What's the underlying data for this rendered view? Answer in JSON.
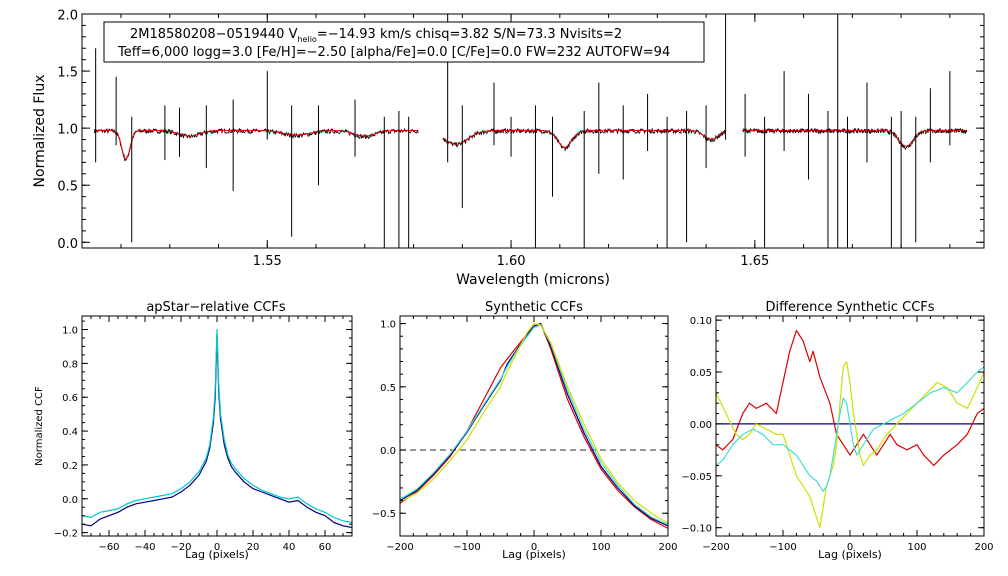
{
  "chart_data": [
    {
      "type": "line",
      "id": "spectrum",
      "info_line1_prefix": "2M18580208−0519440  V",
      "info_line1_sub": "helio",
      "info_line1_suffix": "=−14.93 km/s  chisq=3.82  S/N=73.3  Nvisits=2",
      "info_line2": "Teff=6,000 logg=3.0 [Fe/H]=−2.50 [alpha/Fe]=0.0 [C/Fe]=0.0 FW=232 AUTOFW=94",
      "xlabel": "Wavelength (microns)",
      "ylabel": "Normalized Flux",
      "xlim": [
        1.512,
        1.697
      ],
      "ylim": [
        -0.05,
        2.0
      ],
      "xticks": [
        1.55,
        1.6,
        1.65
      ],
      "xtick_labels": [
        "1.55",
        "1.60",
        "1.65"
      ],
      "yticks": [
        0.0,
        0.5,
        1.0,
        1.5,
        2.0
      ],
      "ytick_labels": [
        "0.0",
        "0.5",
        "1.0",
        "1.5",
        "2.0"
      ],
      "chips": [
        [
          1.5145,
          1.581
        ],
        [
          1.586,
          1.644
        ],
        [
          1.6475,
          1.6935
        ]
      ],
      "observed_color": "#000000",
      "model_color": "#dd0000",
      "series": [
        {
          "name": "observed",
          "continuum": 0.975,
          "scatter": 0.02
        },
        {
          "name": "model",
          "continuum": 0.98
        }
      ],
      "absorption": [
        {
          "x": 1.521,
          "depth": 0.25,
          "w": 0.0012
        },
        {
          "x": 1.534,
          "depth": 0.05,
          "w": 0.003
        },
        {
          "x": 1.556,
          "depth": 0.04,
          "w": 0.004
        },
        {
          "x": 1.57,
          "depth": 0.05,
          "w": 0.003
        },
        {
          "x": 1.5887,
          "depth": 0.12,
          "w": 0.0035
        },
        {
          "x": 1.611,
          "depth": 0.15,
          "w": 0.002
        },
        {
          "x": 1.641,
          "depth": 0.08,
          "w": 0.002
        },
        {
          "x": 1.681,
          "depth": 0.14,
          "w": 0.002
        }
      ],
      "spikes": [
        {
          "x": 1.5148,
          "lo": 0.7,
          "hi": 1.7
        },
        {
          "x": 1.519,
          "lo": 0.85,
          "hi": 1.45
        },
        {
          "x": 1.5222,
          "lo": 0.0,
          "hi": 1.1
        },
        {
          "x": 1.529,
          "lo": 0.72,
          "hi": 1.2
        },
        {
          "x": 1.532,
          "lo": 0.75,
          "hi": 1.18
        },
        {
          "x": 1.5375,
          "lo": 0.65,
          "hi": 1.2
        },
        {
          "x": 1.543,
          "lo": 0.45,
          "hi": 1.25
        },
        {
          "x": 1.55,
          "lo": 0.9,
          "hi": 1.5
        },
        {
          "x": 1.555,
          "lo": 0.05,
          "hi": 1.2
        },
        {
          "x": 1.5605,
          "lo": 0.5,
          "hi": 1.2
        },
        {
          "x": 1.568,
          "lo": 0.75,
          "hi": 1.25
        },
        {
          "x": 1.574,
          "lo": -0.05,
          "hi": 1.1
        },
        {
          "x": 1.577,
          "lo": -0.05,
          "hi": 1.15
        },
        {
          "x": 1.579,
          "lo": -0.05,
          "hi": 1.1
        },
        {
          "x": 1.587,
          "lo": 0.7,
          "hi": 2.0
        },
        {
          "x": 1.59,
          "lo": 0.3,
          "hi": 1.2
        },
        {
          "x": 1.5965,
          "lo": 0.85,
          "hi": 1.4
        },
        {
          "x": 1.6,
          "lo": 0.75,
          "hi": 1.1
        },
        {
          "x": 1.605,
          "lo": -0.05,
          "hi": 1.2
        },
        {
          "x": 1.6085,
          "lo": 0.4,
          "hi": 1.1
        },
        {
          "x": 1.615,
          "lo": -0.05,
          "hi": 1.15
        },
        {
          "x": 1.618,
          "lo": 0.6,
          "hi": 1.4
        },
        {
          "x": 1.623,
          "lo": 0.55,
          "hi": 1.2
        },
        {
          "x": 1.628,
          "lo": 0.8,
          "hi": 1.3
        },
        {
          "x": 1.632,
          "lo": -0.05,
          "hi": 1.1
        },
        {
          "x": 1.636,
          "lo": 0.0,
          "hi": 1.15
        },
        {
          "x": 1.64,
          "lo": 0.65,
          "hi": 1.2
        },
        {
          "x": 1.644,
          "lo": 0.9,
          "hi": 2.0
        },
        {
          "x": 1.648,
          "lo": 0.75,
          "hi": 1.3
        },
        {
          "x": 1.652,
          "lo": -0.05,
          "hi": 1.1
        },
        {
          "x": 1.656,
          "lo": 0.8,
          "hi": 1.5
        },
        {
          "x": 1.661,
          "lo": 0.55,
          "hi": 1.3
        },
        {
          "x": 1.665,
          "lo": -0.05,
          "hi": 1.15
        },
        {
          "x": 1.667,
          "lo": -0.05,
          "hi": 2.0
        },
        {
          "x": 1.669,
          "lo": -0.05,
          "hi": 1.1
        },
        {
          "x": 1.673,
          "lo": 0.7,
          "hi": 1.4
        },
        {
          "x": 1.678,
          "lo": -0.05,
          "hi": 1.1
        },
        {
          "x": 1.68,
          "lo": -0.05,
          "hi": 1.15
        },
        {
          "x": 1.683,
          "lo": 0.0,
          "hi": 1.1
        },
        {
          "x": 1.686,
          "lo": 0.7,
          "hi": 1.35
        },
        {
          "x": 1.69,
          "lo": 0.85,
          "hi": 1.5
        }
      ]
    },
    {
      "type": "line",
      "id": "apstar",
      "title": "apStar−relative CCFs",
      "xlabel": "Lag (pixels)",
      "ylabel": "Normalized CCF",
      "xlim": [
        -75,
        75
      ],
      "ylim": [
        -0.22,
        1.08
      ],
      "xticks": [
        -60,
        -40,
        -20,
        0,
        20,
        40,
        60
      ],
      "xtick_labels": [
        "−60",
        "−40",
        "−20",
        "0",
        "20",
        "40",
        "60"
      ],
      "yticks": [
        -0.2,
        0.0,
        0.2,
        0.4,
        0.6,
        0.8,
        1.0
      ],
      "ytick_labels": [
        "−0.2",
        "0.0",
        "0.2",
        "0.4",
        "0.6",
        "0.8",
        "1.0"
      ],
      "series": [
        {
          "name": "visit-1",
          "color": "#000080",
          "x": [
            -75,
            -70,
            -65,
            -60,
            -55,
            -50,
            -45,
            -40,
            -35,
            -30,
            -25,
            -20,
            -15,
            -10,
            -8,
            -6,
            -4,
            -2,
            -1,
            0,
            1,
            2,
            4,
            6,
            8,
            10,
            15,
            20,
            25,
            30,
            35,
            40,
            45,
            50,
            55,
            60,
            65,
            70,
            75
          ],
          "y": [
            -0.15,
            -0.16,
            -0.12,
            -0.1,
            -0.08,
            -0.05,
            -0.03,
            -0.02,
            -0.01,
            0.0,
            0.01,
            0.04,
            0.08,
            0.14,
            0.18,
            0.22,
            0.3,
            0.45,
            0.6,
            0.97,
            0.62,
            0.47,
            0.32,
            0.24,
            0.19,
            0.16,
            0.1,
            0.06,
            0.04,
            0.02,
            0.0,
            -0.02,
            -0.01,
            -0.05,
            -0.08,
            -0.1,
            -0.14,
            -0.16,
            -0.17
          ]
        },
        {
          "name": "visit-2",
          "color": "#00c8c8",
          "x": [
            -75,
            -70,
            -65,
            -60,
            -55,
            -50,
            -45,
            -40,
            -35,
            -30,
            -25,
            -20,
            -15,
            -10,
            -8,
            -6,
            -4,
            -2,
            -1,
            0,
            1,
            2,
            4,
            6,
            8,
            10,
            15,
            20,
            25,
            30,
            35,
            40,
            45,
            50,
            55,
            60,
            65,
            70,
            75
          ],
          "y": [
            -0.1,
            -0.11,
            -0.08,
            -0.07,
            -0.06,
            -0.03,
            -0.01,
            0.0,
            0.01,
            0.02,
            0.03,
            0.06,
            0.1,
            0.16,
            0.2,
            0.24,
            0.32,
            0.48,
            0.65,
            1.0,
            0.66,
            0.5,
            0.35,
            0.26,
            0.21,
            0.18,
            0.12,
            0.08,
            0.05,
            0.03,
            0.01,
            0.0,
            0.01,
            -0.03,
            -0.06,
            -0.08,
            -0.11,
            -0.13,
            -0.14
          ]
        }
      ]
    },
    {
      "type": "line",
      "id": "synthetic",
      "title": "Synthetic CCFs",
      "xlabel": "Lag (pixels)",
      "ylabel": "",
      "xlim": [
        -200,
        200
      ],
      "ylim": [
        -0.68,
        1.06
      ],
      "xticks": [
        -200,
        -100,
        0,
        100,
        200
      ],
      "xtick_labels": [
        "−200",
        "−100",
        "0",
        "100",
        "200"
      ],
      "yticks": [
        -0.5,
        0.0,
        0.5,
        1.0
      ],
      "ytick_labels": [
        "−0.5",
        "0.0",
        "0.5",
        "1.0"
      ],
      "reference_line": {
        "y": 0.0,
        "style": "dashed",
        "color": "#555555"
      },
      "series": [
        {
          "name": "combined",
          "color": "#dd0000",
          "x": [
            -200,
            -175,
            -150,
            -125,
            -100,
            -75,
            -50,
            -40,
            -25,
            -10,
            0,
            10,
            25,
            50,
            75,
            100,
            125,
            150,
            175,
            200
          ],
          "y": [
            -0.42,
            -0.33,
            -0.2,
            -0.05,
            0.15,
            0.4,
            0.65,
            0.72,
            0.82,
            0.92,
            0.98,
            1.0,
            0.8,
            0.4,
            0.1,
            -0.15,
            -0.32,
            -0.45,
            -0.55,
            -0.62
          ]
        },
        {
          "name": "visit-1",
          "color": "#000080",
          "x": [
            -200,
            -175,
            -150,
            -125,
            -100,
            -75,
            -50,
            -40,
            -25,
            -10,
            0,
            10,
            25,
            50,
            75,
            100,
            125,
            150,
            175,
            200
          ],
          "y": [
            -0.4,
            -0.32,
            -0.19,
            -0.04,
            0.14,
            0.35,
            0.55,
            0.68,
            0.8,
            0.91,
            0.98,
            1.0,
            0.82,
            0.44,
            0.13,
            -0.13,
            -0.3,
            -0.44,
            -0.54,
            -0.6
          ]
        },
        {
          "name": "visit-2",
          "color": "#40e0d0",
          "x": [
            -200,
            -175,
            -150,
            -125,
            -100,
            -75,
            -50,
            -40,
            -25,
            -10,
            0,
            10,
            25,
            50,
            75,
            100,
            125,
            150,
            175,
            200
          ],
          "y": [
            -0.39,
            -0.31,
            -0.18,
            -0.03,
            0.15,
            0.36,
            0.56,
            0.66,
            0.79,
            0.9,
            0.97,
            0.99,
            0.84,
            0.47,
            0.16,
            -0.1,
            -0.28,
            -0.43,
            -0.53,
            -0.59
          ]
        },
        {
          "name": "visit-3",
          "color": "#d0e000",
          "x": [
            -200,
            -175,
            -150,
            -125,
            -100,
            -75,
            -50,
            -40,
            -25,
            -10,
            0,
            10,
            25,
            50,
            75,
            100,
            125,
            150,
            175,
            200
          ],
          "y": [
            -0.41,
            -0.34,
            -0.23,
            -0.08,
            0.08,
            0.3,
            0.5,
            0.62,
            0.78,
            0.93,
            1.0,
            0.99,
            0.85,
            0.5,
            0.2,
            -0.07,
            -0.26,
            -0.4,
            -0.5,
            -0.58
          ]
        }
      ]
    },
    {
      "type": "line",
      "id": "difference",
      "title": "Difference Synthetic CCFs",
      "xlabel": "Lag (pixels)",
      "ylabel": "",
      "xlim": [
        -200,
        200
      ],
      "ylim": [
        -0.108,
        0.104
      ],
      "xticks": [
        -200,
        -100,
        0,
        100,
        200
      ],
      "xtick_labels": [
        "−200",
        "−100",
        "0",
        "100",
        "200"
      ],
      "yticks": [
        -0.1,
        -0.05,
        0.0,
        0.05,
        0.1
      ],
      "ytick_labels": [
        "−0.10",
        "−0.05",
        "0.00",
        "0.05",
        "0.10"
      ],
      "series": [
        {
          "name": "baseline",
          "color": "#000080",
          "x": [
            -200,
            200
          ],
          "y": [
            0.0,
            0.0
          ]
        },
        {
          "name": "visit-red",
          "color": "#dd0000",
          "x": [
            -200,
            -190,
            -175,
            -160,
            -150,
            -140,
            -125,
            -110,
            -100,
            -90,
            -80,
            -70,
            -60,
            -55,
            -45,
            -30,
            -20,
            -10,
            0,
            10,
            20,
            30,
            40,
            50,
            60,
            70,
            85,
            100,
            110,
            125,
            140,
            160,
            175,
            190,
            200
          ],
          "y": [
            -0.02,
            -0.025,
            -0.015,
            0.01,
            0.02,
            0.015,
            0.02,
            0.01,
            0.04,
            0.07,
            0.09,
            0.08,
            0.06,
            0.07,
            0.045,
            0.02,
            -0.01,
            -0.02,
            -0.03,
            -0.02,
            -0.01,
            -0.02,
            -0.03,
            -0.02,
            -0.01,
            -0.02,
            -0.025,
            -0.02,
            -0.03,
            -0.04,
            -0.03,
            -0.02,
            -0.01,
            0.01,
            0.015
          ]
        },
        {
          "name": "visit-yellow",
          "color": "#d0e000",
          "x": [
            -200,
            -185,
            -170,
            -160,
            -150,
            -140,
            -125,
            -110,
            -100,
            -90,
            -80,
            -70,
            -60,
            -55,
            -50,
            -45,
            -40,
            -35,
            -30,
            -25,
            -20,
            -15,
            -10,
            -5,
            0,
            5,
            10,
            15,
            20,
            30,
            40,
            55,
            70,
            85,
            100,
            115,
            130,
            145,
            160,
            175,
            190,
            200
          ],
          "y": [
            0.03,
            0.01,
            -0.01,
            -0.015,
            -0.01,
            0.0,
            -0.005,
            -0.01,
            -0.01,
            -0.03,
            -0.05,
            -0.06,
            -0.07,
            -0.08,
            -0.09,
            -0.1,
            -0.08,
            -0.06,
            -0.05,
            -0.04,
            -0.02,
            0.02,
            0.055,
            0.06,
            0.04,
            0.01,
            -0.01,
            -0.03,
            -0.04,
            -0.03,
            -0.025,
            -0.01,
            0.0,
            0.01,
            0.02,
            0.03,
            0.04,
            0.035,
            0.02,
            0.015,
            0.035,
            0.05
          ]
        },
        {
          "name": "visit-cyan",
          "color": "#40e0d0",
          "x": [
            -200,
            -190,
            -175,
            -160,
            -145,
            -130,
            -115,
            -100,
            -90,
            -80,
            -70,
            -60,
            -50,
            -45,
            -40,
            -35,
            -30,
            -25,
            -20,
            -15,
            -10,
            -5,
            0,
            5,
            10,
            20,
            35,
            50,
            65,
            80,
            100,
            120,
            140,
            160,
            175,
            190,
            200
          ],
          "y": [
            -0.04,
            -0.035,
            -0.02,
            -0.01,
            -0.005,
            -0.01,
            -0.02,
            -0.02,
            -0.025,
            -0.03,
            -0.04,
            -0.05,
            -0.055,
            -0.06,
            -0.065,
            -0.06,
            -0.05,
            -0.03,
            -0.01,
            0.01,
            0.025,
            0.02,
            0.0,
            -0.02,
            -0.03,
            -0.02,
            -0.005,
            0.0,
            0.005,
            0.01,
            0.02,
            0.03,
            0.035,
            0.03,
            0.04,
            0.05,
            0.055
          ]
        }
      ]
    }
  ]
}
